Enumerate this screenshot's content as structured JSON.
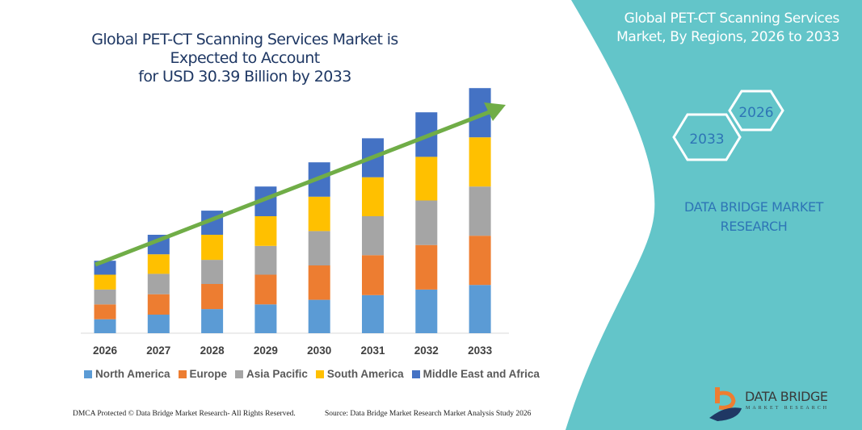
{
  "title": {
    "line1": "Global PET-CT Scanning Services Market is Expected to Account",
    "line2": "for USD 30.39 Billion by 2033"
  },
  "side_panel": {
    "title_line1": "Global PET-CT Scanning Services",
    "title_line2": "Market, By Regions, 2026 to 2033",
    "hex_start": "2026",
    "hex_end": "2033",
    "brand_line1": "DATA BRIDGE MARKET",
    "brand_line2": "RESEARCH",
    "color": "#63c5c9"
  },
  "logo": {
    "name": "DATA BRIDGE",
    "sub": "MARKET RESEARCH"
  },
  "footer": {
    "left": "DMCA Protected © Data Bridge Market Research-  All Rights Reserved.",
    "right": "Source: Data Bridge Market Research  Market Analysis Study 2026"
  },
  "chart_data": {
    "type": "bar",
    "stacked": true,
    "title": "Global PET-CT Scanning Services Market is Expected to Account for USD 30.39 Billion by 2033",
    "categories": [
      "2026",
      "2027",
      "2028",
      "2029",
      "2030",
      "2031",
      "2032",
      "2033"
    ],
    "series": [
      {
        "name": "North America",
        "color": "#5b9bd5",
        "values": [
          1.73,
          2.3,
          2.99,
          3.57,
          4.14,
          4.72,
          5.41,
          5.98
        ]
      },
      {
        "name": "Europe",
        "color": "#ed7d31",
        "values": [
          1.84,
          2.53,
          3.11,
          3.68,
          4.26,
          4.95,
          5.52,
          6.1
        ]
      },
      {
        "name": "Asia Pacific",
        "color": "#a5a5a5",
        "values": [
          1.84,
          2.53,
          2.99,
          3.57,
          4.26,
          4.83,
          5.52,
          6.1
        ]
      },
      {
        "name": "South America",
        "color": "#ffc000",
        "values": [
          1.84,
          2.42,
          3.11,
          3.68,
          4.26,
          4.83,
          5.41,
          6.1
        ]
      },
      {
        "name": "Middle East and Africa",
        "color": "#4472c4",
        "values": [
          1.73,
          2.42,
          2.99,
          3.68,
          4.26,
          4.83,
          5.52,
          6.1
        ]
      }
    ],
    "ylim": [
      0,
      35
    ],
    "y_axis_shown": false,
    "grid": false,
    "legend": "bottom",
    "trend_arrow_color": "#70ad47"
  }
}
